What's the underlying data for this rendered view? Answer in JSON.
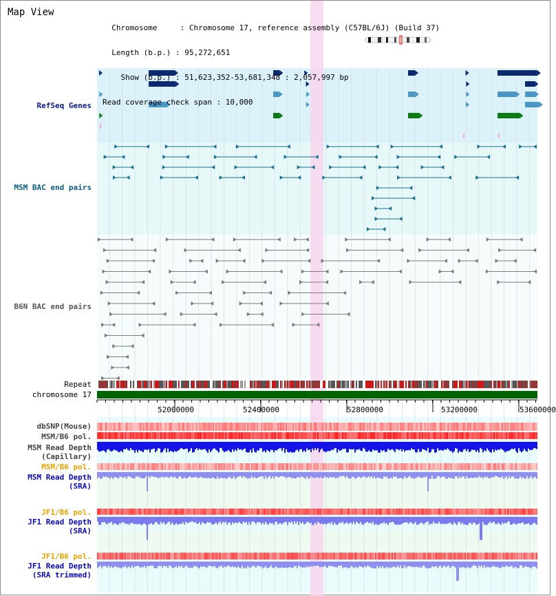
{
  "header": {
    "title": "Map View",
    "info_lines": [
      "  Chromosome     : Chromosome 17, reference assembly (C57BL/6J) (Build 37)",
      "  Length (b.p.) : 95,272,651",
      "    Show (b.p.) : 51,623,352-53,681,348 : 2,057,997 bp",
      "Read coverage check span : 10,000"
    ]
  },
  "tracks": {
    "refseq": "RefSeq Genes",
    "msm_bac": "MSM BAC end pairs",
    "b6n_bac": "B6N BAC end pairs",
    "repeat": "Repeat",
    "chromosome": "chromosome 17",
    "dbsnp": "dbSNP(Mouse)",
    "msm_b6_pol_1": "MSM/B6 pol.",
    "msm_depth_cap": "MSM Read Depth\n(Capillary)",
    "msm_b6_pol_2": "MSM/B6 pol.",
    "msm_depth_sra": "MSM Read Depth\n(SRA)",
    "jf1_b6_pol_1": "JF1/B6 pol.",
    "jf1_depth_sra": "JF1 Read Depth\n(SRA)",
    "jf1_b6_pol_2": "JF1/B6 pol.",
    "jf1_depth_trim": "JF1 Read Depth\n(SRA trimmed)"
  },
  "axis": {
    "ticks": [
      "52000000",
      "52400000",
      "52800000",
      "53200000",
      "53600000"
    ]
  },
  "colors": {
    "refseq_bg": "#dcf2fb",
    "msm_bg": "#e6f8f8",
    "depth_bg": "#eefaf0",
    "highlight": "#f7d6ef",
    "gene_dark": "#0b2a6e",
    "gene_mid": "#4a96c4",
    "gene_green": "#0d7a15",
    "chromosome": "#006400"
  }
}
